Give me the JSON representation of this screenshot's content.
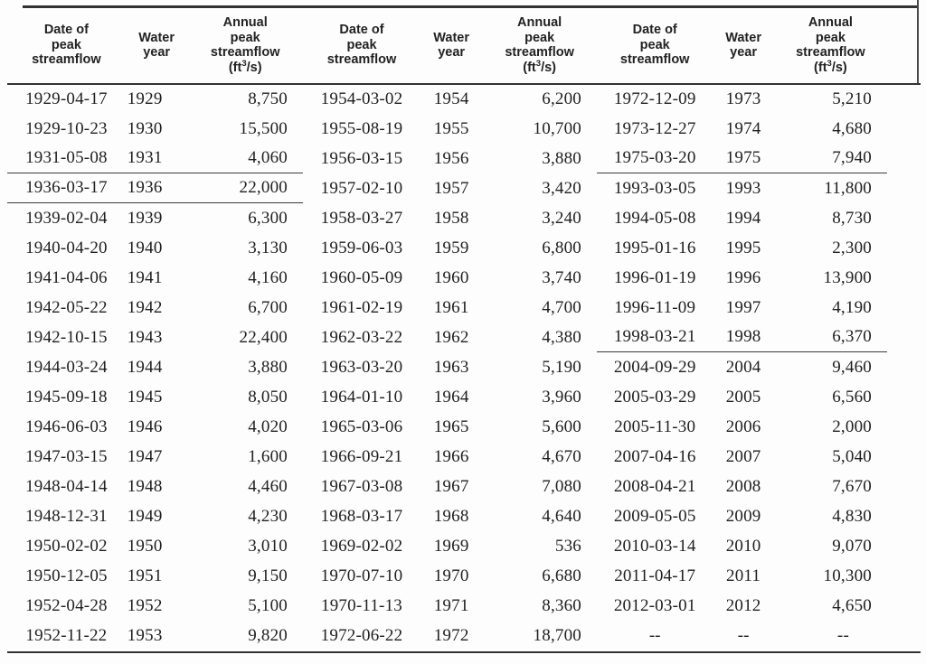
{
  "table": {
    "headers": {
      "date": "Date of\npeak\nstreamflow",
      "year": "Water\nyear",
      "flow_main": "Annual\npeak\nstreamflow",
      "unit_pre": "(ft",
      "unit_sup": "3",
      "unit_post": "/s)"
    },
    "missing_value": "--",
    "groups": [
      {
        "rows": [
          {
            "date": "1929-04-17",
            "year": "1929",
            "flow": "8,750"
          },
          {
            "date": "1929-10-23",
            "year": "1930",
            "flow": "15,500"
          },
          {
            "date": "1931-05-08",
            "year": "1931",
            "flow": "4,060",
            "rule_below": true
          },
          {
            "date": "1936-03-17",
            "year": "1936",
            "flow": "22,000",
            "rule_below": true
          },
          {
            "date": "1939-02-04",
            "year": "1939",
            "flow": "6,300"
          },
          {
            "date": "1940-04-20",
            "year": "1940",
            "flow": "3,130"
          },
          {
            "date": "1941-04-06",
            "year": "1941",
            "flow": "4,160"
          },
          {
            "date": "1942-05-22",
            "year": "1942",
            "flow": "6,700"
          },
          {
            "date": "1942-10-15",
            "year": "1943",
            "flow": "22,400"
          },
          {
            "date": "1944-03-24",
            "year": "1944",
            "flow": "3,880"
          },
          {
            "date": "1945-09-18",
            "year": "1945",
            "flow": "8,050"
          },
          {
            "date": "1946-06-03",
            "year": "1946",
            "flow": "4,020"
          },
          {
            "date": "1947-03-15",
            "year": "1947",
            "flow": "1,600"
          },
          {
            "date": "1948-04-14",
            "year": "1948",
            "flow": "4,460"
          },
          {
            "date": "1948-12-31",
            "year": "1949",
            "flow": "4,230"
          },
          {
            "date": "1950-02-02",
            "year": "1950",
            "flow": "3,010"
          },
          {
            "date": "1950-12-05",
            "year": "1951",
            "flow": "9,150"
          },
          {
            "date": "1952-04-28",
            "year": "1952",
            "flow": "5,100"
          },
          {
            "date": "1952-11-22",
            "year": "1953",
            "flow": "9,820"
          }
        ]
      },
      {
        "rows": [
          {
            "date": "1954-03-02",
            "year": "1954",
            "flow": "6,200"
          },
          {
            "date": "1955-08-19",
            "year": "1955",
            "flow": "10,700"
          },
          {
            "date": "1956-03-15",
            "year": "1956",
            "flow": "3,880"
          },
          {
            "date": "1957-02-10",
            "year": "1957",
            "flow": "3,420"
          },
          {
            "date": "1958-03-27",
            "year": "1958",
            "flow": "3,240"
          },
          {
            "date": "1959-06-03",
            "year": "1959",
            "flow": "6,800"
          },
          {
            "date": "1960-05-09",
            "year": "1960",
            "flow": "3,740"
          },
          {
            "date": "1961-02-19",
            "year": "1961",
            "flow": "4,700"
          },
          {
            "date": "1962-03-22",
            "year": "1962",
            "flow": "4,380"
          },
          {
            "date": "1963-03-20",
            "year": "1963",
            "flow": "5,190"
          },
          {
            "date": "1964-01-10",
            "year": "1964",
            "flow": "3,960"
          },
          {
            "date": "1965-03-06",
            "year": "1965",
            "flow": "5,600"
          },
          {
            "date": "1966-09-21",
            "year": "1966",
            "flow": "4,670"
          },
          {
            "date": "1967-03-08",
            "year": "1967",
            "flow": "7,080"
          },
          {
            "date": "1968-03-17",
            "year": "1968",
            "flow": "4,640"
          },
          {
            "date": "1969-02-02",
            "year": "1969",
            "flow": "536"
          },
          {
            "date": "1970-07-10",
            "year": "1970",
            "flow": "6,680"
          },
          {
            "date": "1970-11-13",
            "year": "1971",
            "flow": "8,360"
          },
          {
            "date": "1972-06-22",
            "year": "1972",
            "flow": "18,700"
          }
        ]
      },
      {
        "rows": [
          {
            "date": "1972-12-09",
            "year": "1973",
            "flow": "5,210"
          },
          {
            "date": "1973-12-27",
            "year": "1974",
            "flow": "4,680"
          },
          {
            "date": "1975-03-20",
            "year": "1975",
            "flow": "7,940",
            "rule_below": true
          },
          {
            "date": "1993-03-05",
            "year": "1993",
            "flow": "11,800"
          },
          {
            "date": "1994-05-08",
            "year": "1994",
            "flow": "8,730"
          },
          {
            "date": "1995-01-16",
            "year": "1995",
            "flow": "2,300"
          },
          {
            "date": "1996-01-19",
            "year": "1996",
            "flow": "13,900"
          },
          {
            "date": "1996-11-09",
            "year": "1997",
            "flow": "4,190"
          },
          {
            "date": "1998-03-21",
            "year": "1998",
            "flow": "6,370",
            "rule_below": true
          },
          {
            "date": "2004-09-29",
            "year": "2004",
            "flow": "9,460"
          },
          {
            "date": "2005-03-29",
            "year": "2005",
            "flow": "6,560"
          },
          {
            "date": "2005-11-30",
            "year": "2006",
            "flow": "2,000"
          },
          {
            "date": "2007-04-16",
            "year": "2007",
            "flow": "5,040"
          },
          {
            "date": "2008-04-21",
            "year": "2008",
            "flow": "7,670"
          },
          {
            "date": "2009-05-05",
            "year": "2009",
            "flow": "4,830"
          },
          {
            "date": "2010-03-14",
            "year": "2010",
            "flow": "9,070"
          },
          {
            "date": "2011-04-17",
            "year": "2011",
            "flow": "10,300"
          },
          {
            "date": "2012-03-01",
            "year": "2012",
            "flow": "4,650"
          },
          {
            "date": "--",
            "year": "--",
            "flow": "--"
          }
        ]
      }
    ]
  }
}
